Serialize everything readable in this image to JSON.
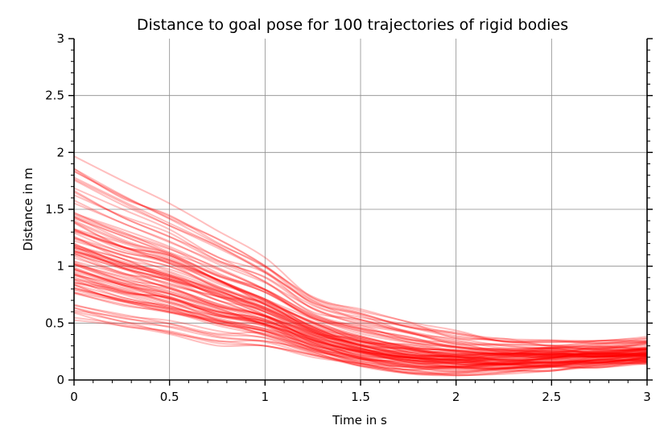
{
  "chart_data": {
    "type": "line",
    "title": "Distance to goal pose for 100 trajectories of rigid bodies",
    "xlabel": "Time in s",
    "ylabel": "Distance in m",
    "xlim": [
      0,
      3
    ],
    "ylim": [
      0,
      3
    ],
    "xticks": [
      0,
      0.5,
      1,
      1.5,
      2,
      2.5,
      3
    ],
    "yticks": [
      0,
      0.5,
      1,
      1.5,
      2,
      2.5,
      3
    ],
    "xtick_labels": [
      "0",
      "0.5",
      "1",
      "1.5",
      "2",
      "2.5",
      "3"
    ],
    "ytick_labels": [
      "0",
      "0.5",
      "1",
      "1.5",
      "2",
      "2.5",
      "3"
    ],
    "grid": true,
    "legend": "none",
    "series_color": "#ff0000",
    "series_opacity": 0.25,
    "series_count": 100,
    "x": [
      0,
      0.25,
      0.5,
      0.75,
      1,
      1.25,
      1.5,
      1.75,
      2,
      2.25,
      2.5,
      2.75,
      3
    ],
    "series_envelope": {
      "min": [
        0.52,
        0.45,
        0.38,
        0.3,
        0.3,
        0.2,
        0.12,
        0.05,
        0.04,
        0.05,
        0.08,
        0.11,
        0.14
      ],
      "max": [
        2.04,
        1.8,
        1.6,
        1.35,
        1.1,
        0.78,
        0.65,
        0.55,
        0.45,
        0.38,
        0.36,
        0.37,
        0.38
      ],
      "dense_band_mean": [
        1.05,
        0.92,
        0.82,
        0.68,
        0.55,
        0.38,
        0.26,
        0.2,
        0.17,
        0.18,
        0.19,
        0.2,
        0.22
      ]
    }
  }
}
